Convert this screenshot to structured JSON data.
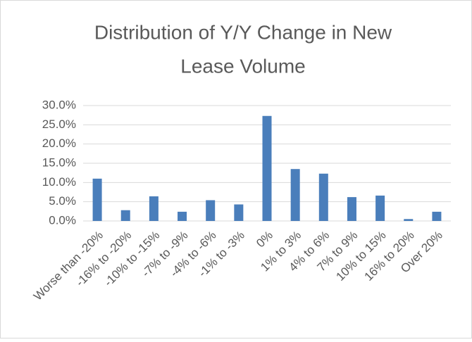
{
  "chart_data": {
    "type": "bar",
    "title": [
      "Distribution of Y/Y Change in New",
      "Lease Volume"
    ],
    "categories": [
      "Worse than -20%",
      "-16% to -20%",
      "-10% to -15%",
      "-7% to -9%",
      "-4% to -6%",
      "-1% to -3%",
      "0%",
      "1% to 3%",
      "4% to 6%",
      "7% to 9%",
      "10% to 15%",
      "16% to 20%",
      "Over 20%"
    ],
    "values": [
      11.0,
      2.8,
      6.4,
      2.4,
      5.4,
      4.3,
      27.3,
      13.5,
      12.3,
      6.2,
      6.6,
      0.5,
      2.4
    ],
    "color": "#4a7ebb",
    "ylim": [
      0,
      30
    ],
    "yticks": [
      {
        "value": 0,
        "label": "0.0%"
      },
      {
        "value": 5,
        "label": "5.0%"
      },
      {
        "value": 10,
        "label": "10.0%"
      },
      {
        "value": 15,
        "label": "15.0%"
      },
      {
        "value": 20,
        "label": "20.0%"
      },
      {
        "value": 25,
        "label": "25.0%"
      },
      {
        "value": 30,
        "label": "30.0%"
      }
    ],
    "grid": true
  }
}
